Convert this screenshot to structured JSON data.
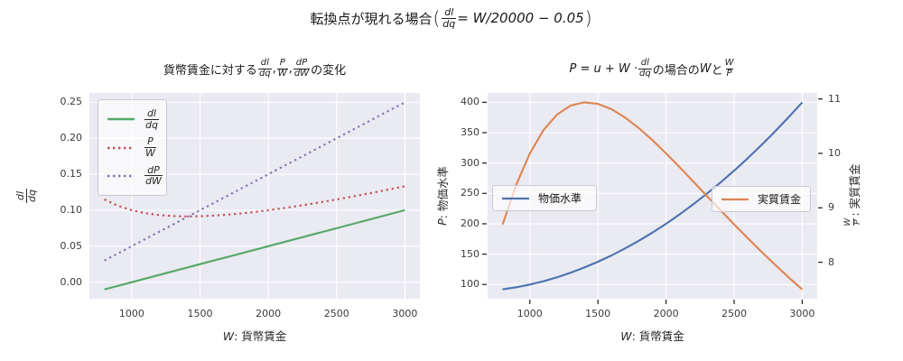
{
  "main_title": {
    "prefix": "転換点が現れる場合 ",
    "open": "(",
    "frac": {
      "num": "dl",
      "den": "dq"
    },
    "suffix": " = W/20000 − 0.05",
    "close": ")"
  },
  "left_plot": {
    "title": {
      "prefix": "貨幣賃金に対する ",
      "f1": {
        "num": "dl",
        "den": "dq"
      },
      "sep1": ", ",
      "f2": {
        "num": "P",
        "den": "W"
      },
      "sep2": ", ",
      "f3": {
        "num": "dP",
        "den": "dW"
      },
      "suffix": " の変化"
    },
    "xlabel": {
      "var": "W",
      "rest": ":  貨幣賃金"
    },
    "ylabel": {
      "num": "dl",
      "den": "dq"
    },
    "legend": [
      {
        "num": "dl",
        "den": "dq"
      },
      {
        "num": "P",
        "den": "W"
      },
      {
        "num": "dP",
        "den": "dW"
      }
    ]
  },
  "right_plot": {
    "title": {
      "t1": "P = u + W · ",
      "f1": {
        "num": "dl",
        "den": "dq"
      },
      "t2": " の場合の ",
      "t3": "W",
      "t4": " と ",
      "f2": {
        "num": "W",
        "den": "P"
      }
    },
    "xlabel": {
      "var": "W",
      "rest": ":  貨幣賃金"
    },
    "ylabel_left": {
      "var": "P",
      "rest": ":  物価水準"
    },
    "ylabel_right_frac": {
      "num": "W",
      "den": "P"
    },
    "ylabel_right_text": ":  実質賃金",
    "legend_left": "物価水準",
    "legend_right": "実質賃金"
  },
  "colors": {
    "green": "#55a868",
    "red": "#c44e52",
    "purple": "#8172b2",
    "blue": "#4c72b0",
    "orange": "#dd8452",
    "axes_bg": "#eaeaf2",
    "grid": "#ffffff",
    "tick_mark": "#262626"
  },
  "chart_data": [
    {
      "type": "line",
      "title": "貨幣賃金に対する dl/dq, P/W, dP/dW の変化",
      "xlabel": "W: 貨幣賃金",
      "ylabel": "dl/dq",
      "x": [
        800,
        900,
        1000,
        1100,
        1200,
        1300,
        1400,
        1500,
        1600,
        1700,
        1800,
        1900,
        2000,
        2100,
        2200,
        2300,
        2400,
        2500,
        2600,
        2700,
        2800,
        2900,
        3000
      ],
      "series": [
        {
          "name": "dl/dq",
          "color": "green",
          "line": "solid",
          "values": [
            -0.01,
            -0.005,
            0,
            0.005,
            0.01,
            0.015,
            0.02,
            0.025,
            0.03,
            0.035,
            0.04,
            0.045,
            0.05,
            0.055,
            0.06,
            0.065,
            0.07,
            0.075,
            0.08,
            0.085,
            0.09,
            0.095,
            0.1
          ]
        },
        {
          "name": "P/W",
          "color": "red",
          "line": "dotted",
          "values": [
            0.115,
            0.1061,
            0.1,
            0.0959,
            0.0933,
            0.0919,
            0.0914,
            0.0917,
            0.0925,
            0.0938,
            0.0956,
            0.0976,
            0.1,
            0.1026,
            0.1055,
            0.1085,
            0.1117,
            0.115,
            0.1185,
            0.122,
            0.1257,
            0.1295,
            0.1333
          ]
        },
        {
          "name": "dP/dW",
          "color": "purple",
          "line": "dotted",
          "values": [
            0.03,
            0.04,
            0.05,
            0.06,
            0.07,
            0.08,
            0.09,
            0.1,
            0.11,
            0.12,
            0.13,
            0.14,
            0.15,
            0.16,
            0.17,
            0.18,
            0.19,
            0.2,
            0.21,
            0.22,
            0.23,
            0.24,
            0.25
          ]
        }
      ],
      "xlim": [
        690,
        3110
      ],
      "ylim": [
        -0.023,
        0.263
      ],
      "xticks": [
        1000,
        1500,
        2000,
        2500,
        3000
      ],
      "yticks": [
        0,
        0.05,
        0.1,
        0.15,
        0.2,
        0.25
      ],
      "ytick_labels": [
        "0.00",
        "0.05",
        "0.10",
        "0.15",
        "0.20",
        "0.25"
      ],
      "grid": true,
      "tick_marks": false,
      "legend_position": "upper left"
    },
    {
      "type": "line",
      "title": "P = u + W · dl/dq の場合の W と W/P",
      "xlabel": "W: 貨幣賃金",
      "ylabel_left": "P: 物価水準",
      "ylabel_right": "W/P: 実質賃金",
      "x": [
        800,
        900,
        1000,
        1100,
        1200,
        1300,
        1400,
        1500,
        1600,
        1700,
        1800,
        1900,
        2000,
        2100,
        2200,
        2300,
        2400,
        2500,
        2600,
        2700,
        2800,
        2900,
        3000
      ],
      "series": [
        {
          "name": "物価水準",
          "axis": "left",
          "color": "blue",
          "line": "solid",
          "values": [
            92,
            95.5,
            100,
            105.5,
            112,
            119.5,
            128,
            137.5,
            148,
            159.5,
            172,
            185.5,
            200,
            215.5,
            232,
            249.5,
            268,
            287.5,
            308,
            329.5,
            352,
            375.5,
            400
          ]
        },
        {
          "name": "実質賃金",
          "axis": "right",
          "color": "orange",
          "line": "solid",
          "values": [
            8.696,
            9.424,
            10,
            10.427,
            10.714,
            10.879,
            10.938,
            10.909,
            10.811,
            10.658,
            10.465,
            10.243,
            10,
            9.745,
            9.483,
            9.218,
            8.955,
            8.696,
            8.442,
            8.194,
            7.955,
            7.723,
            7.5
          ]
        }
      ],
      "xlim": [
        690,
        3110
      ],
      "ylim_left": [
        76.6,
        415.4
      ],
      "ylim_right": [
        7.33,
        11.11
      ],
      "xticks": [
        1000,
        1500,
        2000,
        2500,
        3000
      ],
      "yticks_left": [
        100,
        150,
        200,
        250,
        300,
        350,
        400
      ],
      "yticks_right": [
        8,
        9,
        10,
        11
      ],
      "grid": true,
      "tick_marks": true,
      "legend_positions": [
        "center left",
        "center right"
      ]
    }
  ]
}
